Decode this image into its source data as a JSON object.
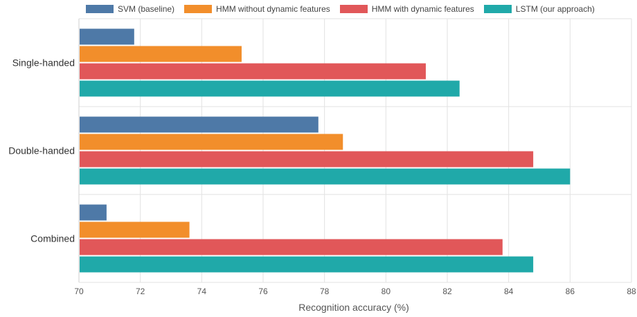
{
  "chart_data": {
    "type": "bar",
    "orientation": "horizontal",
    "categories": [
      "Single-handed",
      "Double-handed",
      "Combined"
    ],
    "series": [
      {
        "name": "SVM (baseline)",
        "color": "#4e79a7",
        "values": [
          71.8,
          77.8,
          70.9
        ]
      },
      {
        "name": "HMM without dynamic features",
        "color": "#f28e2b",
        "values": [
          75.3,
          78.6,
          73.6
        ]
      },
      {
        "name": "HMM with dynamic features",
        "color": "#e15759",
        "values": [
          81.3,
          84.8,
          83.8
        ]
      },
      {
        "name": "LSTM (our approach)",
        "color": "#20a9a9",
        "values": [
          82.4,
          86.0,
          84.8
        ]
      }
    ],
    "xlabel": "Recognition accuracy (%)",
    "ylabel": "",
    "xlim": [
      70,
      88
    ],
    "xticks": [
      70,
      72,
      74,
      76,
      78,
      80,
      82,
      84,
      86,
      88
    ],
    "grid": true,
    "legend_position": "top"
  }
}
